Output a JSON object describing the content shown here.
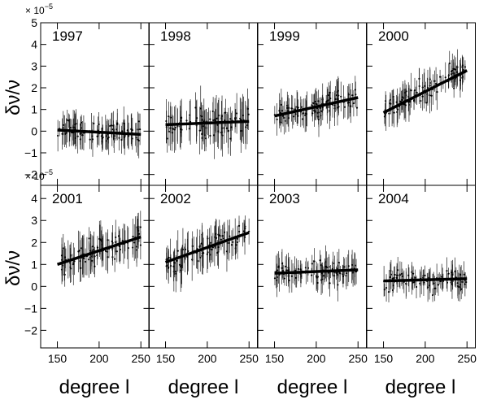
{
  "figure": {
    "y_exponent_label": "× 10",
    "y_exponent_power": "−5",
    "y_axis_label": "δν/ν",
    "x_axis_label": "degree l"
  },
  "chart_data": {
    "type": "scatter",
    "shared_x_range": [
      130,
      260
    ],
    "x_ticks": [
      150,
      200,
      250
    ],
    "rows": [
      {
        "y_range": [
          -2.5,
          5
        ],
        "y_ticks": [
          -2,
          -1,
          0,
          1,
          2,
          3,
          4,
          5
        ]
      },
      {
        "y_range": [
          -2.8,
          4.6
        ],
        "y_ticks": [
          -2,
          -1,
          0,
          1,
          2,
          3,
          4
        ]
      }
    ],
    "panels": [
      {
        "row": 0,
        "col": 0,
        "year": "1997",
        "fit": {
          "x": [
            150,
            250
          ],
          "y": [
            0.05,
            -0.15
          ]
        },
        "scatter_sd": 0.45,
        "error_bar": 0.6
      },
      {
        "row": 0,
        "col": 1,
        "year": "1998",
        "fit": {
          "x": [
            150,
            250
          ],
          "y": [
            0.3,
            0.45
          ]
        },
        "scatter_sd": 0.55,
        "error_bar": 0.8
      },
      {
        "row": 0,
        "col": 2,
        "year": "1999",
        "fit": {
          "x": [
            150,
            250
          ],
          "y": [
            0.7,
            1.55
          ]
        },
        "scatter_sd": 0.5,
        "error_bar": 0.6
      },
      {
        "row": 0,
        "col": 3,
        "year": "2000",
        "fit": {
          "x": [
            150,
            250
          ],
          "y": [
            0.85,
            2.8
          ]
        },
        "scatter_sd": 0.45,
        "error_bar": 0.6
      },
      {
        "row": 1,
        "col": 0,
        "year": "2001",
        "fit": {
          "x": [
            150,
            250
          ],
          "y": [
            1.0,
            2.25
          ]
        },
        "scatter_sd": 0.5,
        "error_bar": 0.7
      },
      {
        "row": 1,
        "col": 1,
        "year": "2002",
        "fit": {
          "x": [
            150,
            250
          ],
          "y": [
            1.1,
            2.45
          ]
        },
        "scatter_sd": 0.5,
        "error_bar": 0.7
      },
      {
        "row": 1,
        "col": 2,
        "year": "2003",
        "fit": {
          "x": [
            150,
            250
          ],
          "y": [
            0.6,
            0.75
          ]
        },
        "scatter_sd": 0.4,
        "error_bar": 0.55
      },
      {
        "row": 1,
        "col": 3,
        "year": "2004",
        "fit": {
          "x": [
            150,
            250
          ],
          "y": [
            0.25,
            0.35
          ]
        },
        "scatter_sd": 0.4,
        "error_bar": 0.5
      }
    ],
    "grid": false,
    "legend": "none"
  }
}
